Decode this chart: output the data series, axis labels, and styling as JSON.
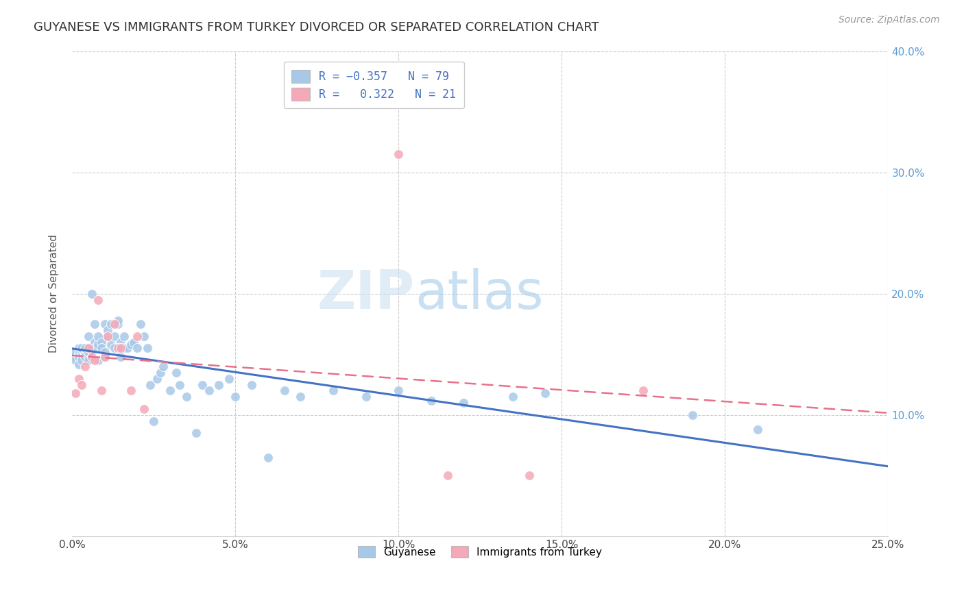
{
  "title": "GUYANESE VS IMMIGRANTS FROM TURKEY DIVORCED OR SEPARATED CORRELATION CHART",
  "source_text": "Source: ZipAtlas.com",
  "ylabel": "Divorced or Separated",
  "xlim": [
    0.0,
    0.25
  ],
  "ylim": [
    0.0,
    0.4
  ],
  "xtick_labels": [
    "0.0%",
    "5.0%",
    "10.0%",
    "15.0%",
    "20.0%",
    "25.0%"
  ],
  "xtick_vals": [
    0.0,
    0.05,
    0.1,
    0.15,
    0.2,
    0.25
  ],
  "ytick_labels": [
    "10.0%",
    "20.0%",
    "30.0%",
    "40.0%"
  ],
  "ytick_vals": [
    0.1,
    0.2,
    0.3,
    0.4
  ],
  "watermark_zip": "ZIP",
  "watermark_atlas": "atlas",
  "color_blue": "#a8c8e8",
  "color_pink": "#f4a8b8",
  "line_blue": "#4472c4",
  "line_pink": "#e8708a",
  "guyanese_x": [
    0.001,
    0.001,
    0.001,
    0.002,
    0.002,
    0.002,
    0.002,
    0.003,
    0.003,
    0.003,
    0.003,
    0.004,
    0.004,
    0.004,
    0.005,
    0.005,
    0.005,
    0.005,
    0.006,
    0.006,
    0.006,
    0.007,
    0.007,
    0.007,
    0.008,
    0.008,
    0.008,
    0.009,
    0.009,
    0.01,
    0.01,
    0.01,
    0.011,
    0.011,
    0.012,
    0.012,
    0.013,
    0.013,
    0.014,
    0.014,
    0.015,
    0.015,
    0.016,
    0.016,
    0.017,
    0.018,
    0.019,
    0.02,
    0.021,
    0.022,
    0.023,
    0.024,
    0.025,
    0.026,
    0.027,
    0.028,
    0.03,
    0.032,
    0.033,
    0.035,
    0.038,
    0.04,
    0.042,
    0.045,
    0.048,
    0.05,
    0.055,
    0.06,
    0.065,
    0.07,
    0.08,
    0.09,
    0.1,
    0.11,
    0.12,
    0.135,
    0.145,
    0.19,
    0.21
  ],
  "guyanese_y": [
    0.148,
    0.152,
    0.145,
    0.155,
    0.15,
    0.148,
    0.142,
    0.152,
    0.148,
    0.155,
    0.145,
    0.15,
    0.148,
    0.155,
    0.148,
    0.152,
    0.145,
    0.165,
    0.155,
    0.148,
    0.2,
    0.16,
    0.155,
    0.175,
    0.158,
    0.165,
    0.145,
    0.16,
    0.155,
    0.148,
    0.152,
    0.175,
    0.165,
    0.17,
    0.158,
    0.175,
    0.155,
    0.165,
    0.175,
    0.178,
    0.16,
    0.148,
    0.155,
    0.165,
    0.155,
    0.158,
    0.16,
    0.155,
    0.175,
    0.165,
    0.155,
    0.125,
    0.095,
    0.13,
    0.135,
    0.14,
    0.12,
    0.135,
    0.125,
    0.115,
    0.085,
    0.125,
    0.12,
    0.125,
    0.13,
    0.115,
    0.125,
    0.065,
    0.12,
    0.115,
    0.12,
    0.115,
    0.12,
    0.112,
    0.11,
    0.115,
    0.118,
    0.1,
    0.088
  ],
  "turkey_x": [
    0.001,
    0.002,
    0.003,
    0.004,
    0.005,
    0.006,
    0.007,
    0.008,
    0.009,
    0.01,
    0.011,
    0.013,
    0.014,
    0.015,
    0.018,
    0.02,
    0.022,
    0.1,
    0.115,
    0.14,
    0.175
  ],
  "turkey_y": [
    0.118,
    0.13,
    0.125,
    0.14,
    0.155,
    0.148,
    0.145,
    0.195,
    0.12,
    0.148,
    0.165,
    0.175,
    0.155,
    0.155,
    0.12,
    0.165,
    0.105,
    0.315,
    0.05,
    0.05,
    0.12
  ]
}
